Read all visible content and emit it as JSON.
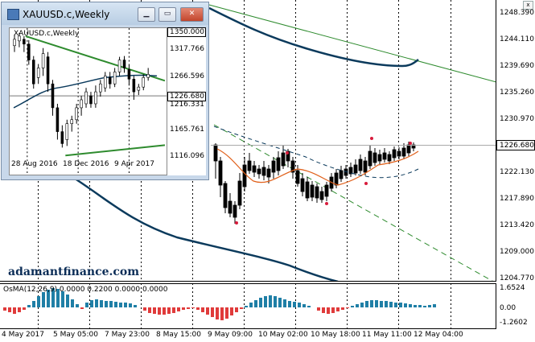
{
  "main_chart": {
    "price_levels": [
      "1248.390",
      "1244.110",
      "1239.690",
      "1235.260",
      "1230.970",
      "1222.130",
      "1217.890",
      "1213.420",
      "1209.000",
      "1204.770"
    ],
    "current_price": "1226.680",
    "time_labels": [
      "4 May 2017",
      "5 May 05:00",
      "7 May 23:00",
      "8 May 15:00",
      "9 May 09:00",
      "10 May 02:00",
      "10 May 18:00",
      "11 May 11:00",
      "12 May 04:00"
    ],
    "watermark": "adamantfinance.com",
    "close_label": "x",
    "colors": {
      "bull_candle": "#000000",
      "ma_short": "#e0601a",
      "ma_long": "#0b3a5c",
      "trend_green": "#2e8b2e",
      "fractal_marker": "#d81b3c"
    }
  },
  "osma": {
    "title": "OsMA(12,26,9) 0.0000 0.2200 0.0000 0.0000",
    "levels": [
      "1.6524",
      "0.00",
      "-1.2602"
    ],
    "colors": {
      "positive": "#1f7fa6",
      "negative": "#e03b3b"
    }
  },
  "sub_window": {
    "title": "XAUUSD.c,Weekly",
    "chart_title": "XAUUSD.c,Weekly",
    "minimize_label": "▁",
    "restore_label": "▭",
    "close_label": "✕",
    "price_levels": [
      "1350.000",
      "1317.766",
      "1266.596",
      "1216.331",
      "1165.761",
      "1116.096"
    ],
    "current_price": "1226.680",
    "date_labels": [
      "28 Aug 2016",
      "18 Dec 2016",
      "9 Apr 2017"
    ]
  }
}
